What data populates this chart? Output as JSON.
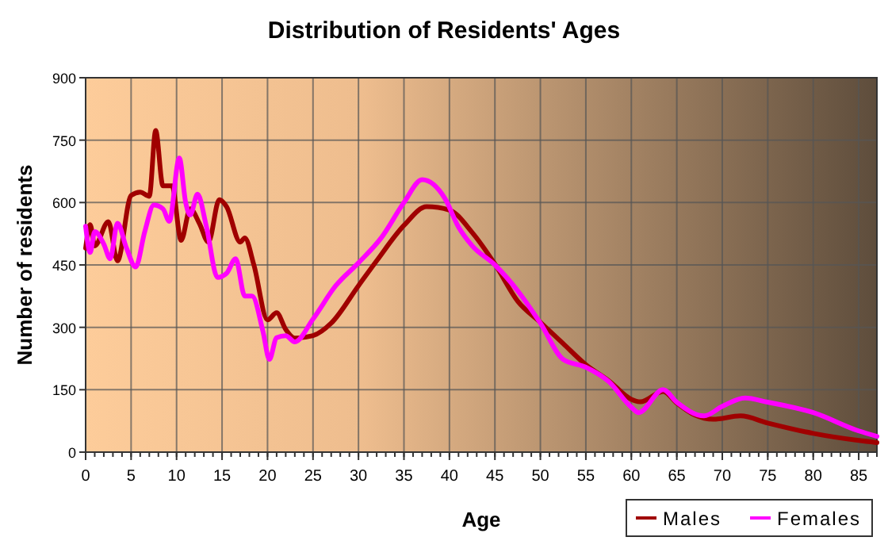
{
  "chart_data": {
    "type": "line",
    "title": "Distribution of Residents' Ages",
    "xlabel": "Age",
    "ylabel": "Number of residents",
    "xlim": [
      0,
      87
    ],
    "xticks": [
      0,
      5,
      10,
      15,
      20,
      25,
      30,
      35,
      40,
      45,
      50,
      55,
      60,
      65,
      70,
      75,
      80,
      85
    ],
    "ylim": [
      0,
      900
    ],
    "yticks": [
      0,
      150,
      300,
      450,
      600,
      750,
      900
    ],
    "grid": true,
    "legend": "bottom right",
    "marker": "none",
    "line_style": "solid",
    "series": [
      {
        "name": "Males",
        "color": "#a00000",
        "x": [
          0,
          0.5,
          1,
          2.5,
          3.5,
          5,
          6,
          7,
          7.7,
          8.5,
          9.5,
          10.5,
          11.5,
          12.5,
          13.5,
          14.7,
          15.5,
          17,
          17.5,
          18.5,
          20,
          21,
          22,
          23,
          25,
          27,
          30,
          32,
          35,
          37.5,
          40,
          42.5,
          45,
          47.5,
          50,
          52.5,
          55,
          57.5,
          60,
          61,
          63.5,
          65,
          67,
          69,
          72,
          75,
          80,
          85,
          87
        ],
        "values": [
          490,
          547,
          496,
          554,
          460,
          617,
          625,
          615,
          773,
          640,
          640,
          509,
          585,
          550,
          505,
          607,
          590,
          505,
          515,
          450,
          318,
          335,
          295,
          274,
          280,
          310,
          400,
          460,
          545,
          590,
          582,
          528,
          452,
          363,
          312,
          261,
          210,
          172,
          127,
          121,
          146,
          118,
          89,
          79,
          87,
          70,
          45,
          28,
          23
        ]
      },
      {
        "name": "Females",
        "color": "#ff00ff",
        "x": [
          0,
          0.5,
          1,
          2,
          2.7,
          3.5,
          4.5,
          5.5,
          6.5,
          7.5,
          8.5,
          9.2,
          10.3,
          11,
          11.5,
          12.3,
          13.3,
          14.5,
          15.5,
          16.5,
          17.5,
          18.3,
          19.5,
          20.2,
          21,
          22,
          23,
          25,
          27.5,
          30,
          32.5,
          35,
          37,
          39.5,
          41,
          42.5,
          45,
          47.5,
          50,
          52.5,
          55,
          57.5,
          60,
          60.8,
          63.5,
          65,
          68,
          70,
          72.5,
          75,
          80,
          85,
          87
        ],
        "values": [
          543,
          480,
          530,
          500,
          465,
          550,
          490,
          445,
          530,
          594,
          585,
          555,
          707,
          600,
          570,
          620,
          540,
          420,
          430,
          465,
          375,
          375,
          290,
          223,
          275,
          280,
          265,
          320,
          400,
          455,
          515,
          600,
          655,
          610,
          541,
          496,
          450,
          388,
          310,
          223,
          204,
          170,
          108,
          95,
          150,
          120,
          87,
          110,
          130,
          120,
          95,
          51,
          38
        ]
      }
    ]
  }
}
